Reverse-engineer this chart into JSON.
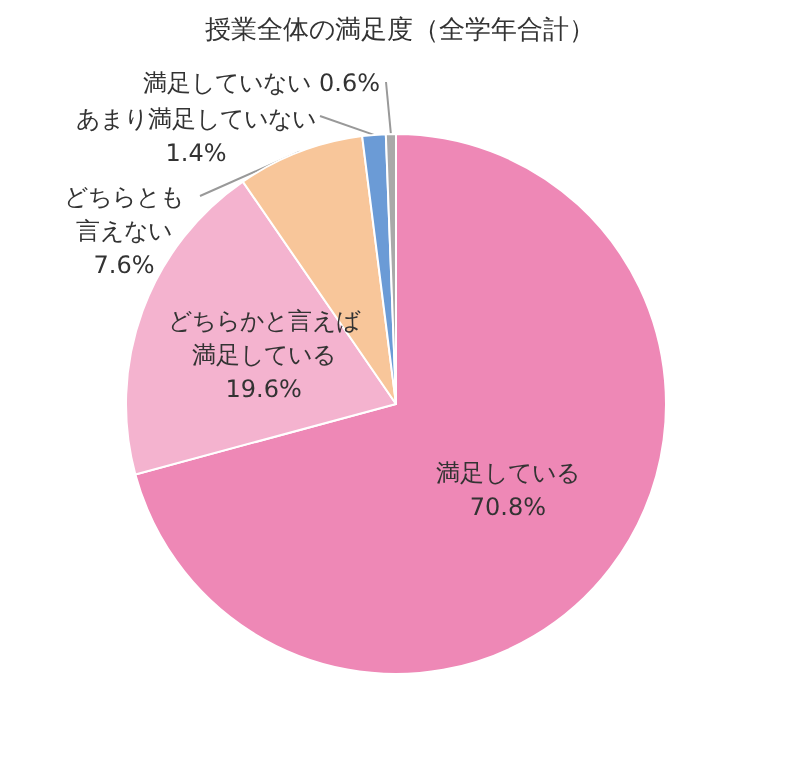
{
  "chart_data": {
    "type": "pie",
    "title": "授業全体の満足度（全学年合計）",
    "categories": [
      "満足している",
      "どちらかと言えば満足している",
      "どちらとも言えない",
      "あまり満足していない",
      "満足していない"
    ],
    "values": [
      70.8,
      19.6,
      7.6,
      1.4,
      0.6
    ],
    "value_labels": [
      "70.8%",
      "19.6%",
      "7.6%",
      "1.4%",
      "0.6%"
    ],
    "colors": [
      "#ee88b6",
      "#f4b3cf",
      "#f8c69a",
      "#6b9bd6",
      "#a9a9a9"
    ]
  }
}
